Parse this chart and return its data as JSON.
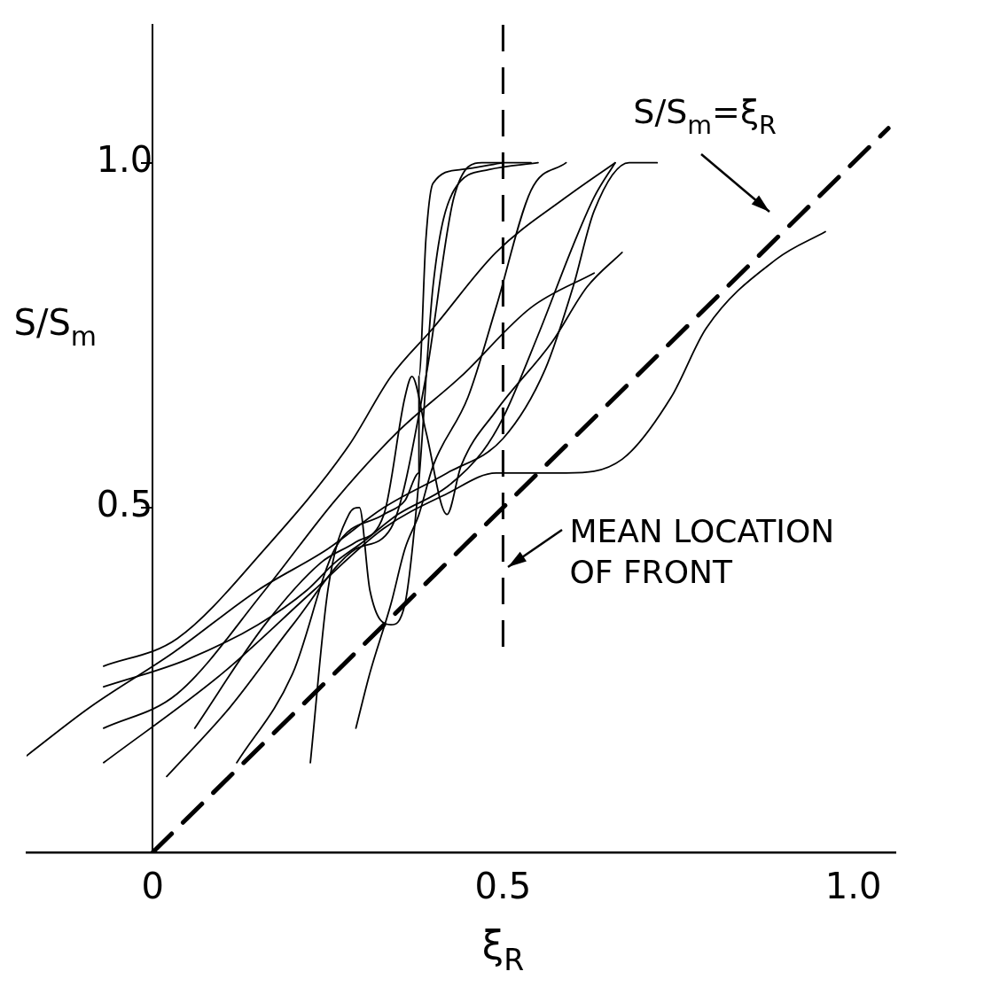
{
  "chart_data": {
    "type": "line",
    "xlabel": "ξ$_{R}$",
    "ylabel": "S/S$_{m}$",
    "xlim": [
      -0.18,
      1.06
    ],
    "ylim": [
      0,
      1.2
    ],
    "xticks": [
      0,
      0.5,
      {
        "value": 1.0,
        "label": "1.0"
      }
    ],
    "yticks": [
      0.5,
      {
        "value": 1.0,
        "label": "1.0"
      }
    ],
    "grid": false,
    "legend": false,
    "marker": "none",
    "ref_lines": [
      {
        "axis": "x",
        "value": 0.5,
        "label": "MEAN LOCATION OF FRONT",
        "color": "#000000",
        "line_style": "dashed"
      }
    ],
    "series": [
      {
        "name": "S/S$_{m}$=ξ$_{R}$",
        "line_style": "dashed",
        "color": "#000000",
        "x": [
          0,
          1.05
        ],
        "values": [
          0,
          1.05
        ]
      },
      {
        "color": "#000000",
        "x": [
          -0.07,
          0.1,
          0.23,
          0.33,
          0.42,
          0.49,
          0.59,
          0.67,
          0.74,
          0.79,
          0.89,
          0.96
        ],
        "values": [
          0.13,
          0.26,
          0.38,
          0.47,
          0.52,
          0.55,
          0.55,
          0.57,
          0.66,
          0.76,
          0.86,
          0.9
        ]
      },
      {
        "color": "#000000",
        "x": [
          -0.07,
          0.035,
          0.16,
          0.28,
          0.34,
          0.4,
          0.49,
          0.59,
          0.66
        ],
        "values": [
          0.27,
          0.31,
          0.44,
          0.59,
          0.69,
          0.76,
          0.87,
          0.95,
          1.0
        ]
      },
      {
        "color": "#000000",
        "x": [
          -0.07,
          0.035,
          0.16,
          0.26,
          0.35,
          0.44,
          0.54,
          0.63
        ],
        "values": [
          0.18,
          0.23,
          0.38,
          0.51,
          0.61,
          0.69,
          0.79,
          0.84
        ]
      },
      {
        "color": "#000000",
        "x": [
          0.02,
          0.11,
          0.2,
          0.29,
          0.34,
          0.39,
          0.43,
          0.47,
          0.54
        ],
        "values": [
          0.11,
          0.21,
          0.33,
          0.44,
          0.47,
          0.69,
          0.95,
          1.0,
          1.0
        ]
      },
      {
        "color": "#000000",
        "x": [
          0.225,
          0.25,
          0.28,
          0.295,
          0.31,
          0.34,
          0.36,
          0.38,
          0.4,
          0.43,
          0.48,
          0.55
        ],
        "values": [
          0.13,
          0.38,
          0.49,
          0.5,
          0.38,
          0.33,
          0.36,
          0.54,
          0.82,
          0.96,
          0.99,
          1.0
        ]
      },
      {
        "color": "#000000",
        "x": [
          0.29,
          0.31,
          0.34,
          0.36,
          0.38,
          0.4,
          0.45,
          0.49,
          0.54,
          0.59
        ],
        "values": [
          0.18,
          0.26,
          0.36,
          0.44,
          0.49,
          0.56,
          0.66,
          0.79,
          0.96,
          1.0
        ]
      },
      {
        "color": "#000000",
        "x": [
          0.12,
          0.2,
          0.26,
          0.33,
          0.36,
          0.38,
          0.38,
          0.39,
          0.4,
          0.44,
          0.5
        ],
        "values": [
          0.13,
          0.26,
          0.44,
          0.49,
          0.51,
          0.55,
          0.69,
          0.89,
          0.97,
          0.99,
          1.0
        ]
      },
      {
        "color": "#000000",
        "x": [
          0.06,
          0.16,
          0.24,
          0.29,
          0.33,
          0.36,
          0.37,
          0.39,
          0.42,
          0.44,
          0.49,
          0.57,
          0.62,
          0.67
        ],
        "values": [
          0.18,
          0.33,
          0.42,
          0.45,
          0.49,
          0.66,
          0.69,
          0.61,
          0.49,
          0.56,
          0.64,
          0.74,
          0.82,
          0.87
        ]
      },
      {
        "color": "#000000",
        "x": [
          -0.18,
          -0.09,
          0.03,
          0.15,
          0.25,
          0.33,
          0.42,
          0.5,
          0.56,
          0.6,
          0.63,
          0.68,
          0.72
        ],
        "values": [
          0.14,
          0.21,
          0.29,
          0.38,
          0.44,
          0.5,
          0.55,
          0.6,
          0.7,
          0.82,
          0.93,
          1.0,
          1.0
        ]
      },
      {
        "color": "#000000",
        "x": [
          -0.07,
          0.05,
          0.15,
          0.22,
          0.26,
          0.3,
          0.35,
          0.42,
          0.47,
          0.5,
          0.55,
          0.6,
          0.63,
          0.66
        ],
        "values": [
          0.24,
          0.28,
          0.33,
          0.38,
          0.42,
          0.45,
          0.49,
          0.53,
          0.58,
          0.63,
          0.75,
          0.88,
          0.95,
          1.0
        ]
      }
    ]
  }
}
